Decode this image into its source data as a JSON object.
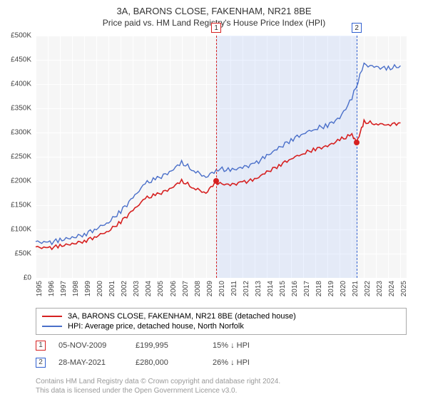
{
  "title": "3A, BARONS CLOSE, FAKENHAM, NR21 8BE",
  "subtitle": "Price paid vs. HM Land Registry's House Price Index (HPI)",
  "chart": {
    "type": "line",
    "background_color": "#f6f6f6",
    "grid_color": "#ffffff",
    "x_range": [
      1995,
      2025.5
    ],
    "y_range": [
      0,
      500000
    ],
    "y_ticks": [
      0,
      50000,
      100000,
      150000,
      200000,
      250000,
      300000,
      350000,
      400000,
      450000,
      500000
    ],
    "y_tick_labels": [
      "£0",
      "£50K",
      "£100K",
      "£150K",
      "£200K",
      "£250K",
      "£300K",
      "£350K",
      "£400K",
      "£450K",
      "£500K"
    ],
    "x_ticks": [
      1995,
      1996,
      1997,
      1998,
      1999,
      2000,
      2001,
      2002,
      2003,
      2004,
      2005,
      2006,
      2007,
      2008,
      2009,
      2010,
      2011,
      2012,
      2013,
      2014,
      2015,
      2016,
      2017,
      2018,
      2019,
      2020,
      2021,
      2022,
      2023,
      2024,
      2025
    ],
    "x_tick_labels": [
      "1995",
      "1996",
      "1997",
      "1998",
      "1999",
      "2000",
      "2001",
      "2002",
      "2003",
      "2004",
      "2005",
      "2006",
      "2007",
      "2008",
      "2009",
      "2010",
      "2011",
      "2012",
      "2013",
      "2014",
      "2015",
      "2016",
      "2017",
      "2018",
      "2019",
      "2020",
      "2021",
      "2022",
      "2023",
      "2024",
      "2025"
    ],
    "label_fontsize": 10,
    "shaded_region": {
      "from": 2009.85,
      "to": 2021.4,
      "color": "rgba(100,150,255,0.12)"
    },
    "markers": [
      {
        "n": "1",
        "x": 2009.85,
        "color": "#d62020"
      },
      {
        "n": "2",
        "x": 2021.4,
        "color": "#3060d0"
      }
    ],
    "series": [
      {
        "name": "hpi",
        "color": "#4a6fc9",
        "width": 1.4,
        "points": [
          [
            1995,
            75000
          ],
          [
            1996,
            72000
          ],
          [
            1997,
            78000
          ],
          [
            1998,
            83000
          ],
          [
            1999,
            90000
          ],
          [
            2000,
            102000
          ],
          [
            2001,
            115000
          ],
          [
            2002,
            138000
          ],
          [
            2003,
            165000
          ],
          [
            2004,
            195000
          ],
          [
            2005,
            205000
          ],
          [
            2006,
            218000
          ],
          [
            2007,
            238000
          ],
          [
            2008,
            222000
          ],
          [
            2009,
            208000
          ],
          [
            2010,
            225000
          ],
          [
            2011,
            222000
          ],
          [
            2012,
            228000
          ],
          [
            2013,
            235000
          ],
          [
            2014,
            252000
          ],
          [
            2015,
            268000
          ],
          [
            2016,
            285000
          ],
          [
            2017,
            298000
          ],
          [
            2018,
            308000
          ],
          [
            2019,
            315000
          ],
          [
            2020,
            330000
          ],
          [
            2021,
            370000
          ],
          [
            2022,
            440000
          ],
          [
            2023,
            435000
          ],
          [
            2024,
            432000
          ],
          [
            2025,
            438000
          ]
        ]
      },
      {
        "name": "property",
        "color": "#d62020",
        "width": 1.6,
        "points": [
          [
            1995,
            64000
          ],
          [
            1996,
            61000
          ],
          [
            1997,
            66000
          ],
          [
            1998,
            70000
          ],
          [
            1999,
            76000
          ],
          [
            2000,
            86000
          ],
          [
            2001,
            97000
          ],
          [
            2002,
            116000
          ],
          [
            2003,
            139000
          ],
          [
            2004,
            164000
          ],
          [
            2005,
            172000
          ],
          [
            2006,
            183000
          ],
          [
            2007,
            200000
          ],
          [
            2008,
            186000
          ],
          [
            2009,
            175000
          ],
          [
            2009.85,
            199995
          ],
          [
            2010,
            195000
          ],
          [
            2011,
            192000
          ],
          [
            2012,
            197000
          ],
          [
            2013,
            203000
          ],
          [
            2014,
            218000
          ],
          [
            2015,
            232000
          ],
          [
            2016,
            246000
          ],
          [
            2017,
            257000
          ],
          [
            2018,
            266000
          ],
          [
            2019,
            272000
          ],
          [
            2020,
            285000
          ],
          [
            2021,
            295000
          ],
          [
            2021.4,
            280000
          ],
          [
            2022,
            322000
          ],
          [
            2023,
            318000
          ],
          [
            2024,
            316000
          ],
          [
            2025,
            320000
          ]
        ]
      }
    ],
    "sale_points": [
      {
        "x": 2009.85,
        "y": 199995,
        "color": "#d62020"
      },
      {
        "x": 2021.4,
        "y": 280000,
        "color": "#d62020"
      }
    ]
  },
  "legend": {
    "items": [
      {
        "color": "#d62020",
        "label": "3A, BARONS CLOSE, FAKENHAM, NR21 8BE (detached house)"
      },
      {
        "color": "#4a6fc9",
        "label": "HPI: Average price, detached house, North Norfolk"
      }
    ]
  },
  "sales": [
    {
      "n": "1",
      "marker_color": "#d62020",
      "date": "05-NOV-2009",
      "price": "£199,995",
      "delta": "15% ↓ HPI"
    },
    {
      "n": "2",
      "marker_color": "#3060d0",
      "date": "28-MAY-2021",
      "price": "£280,000",
      "delta": "26% ↓ HPI"
    }
  ],
  "footnote": {
    "line1": "Contains HM Land Registry data © Crown copyright and database right 2024.",
    "line2": "This data is licensed under the Open Government Licence v3.0."
  }
}
